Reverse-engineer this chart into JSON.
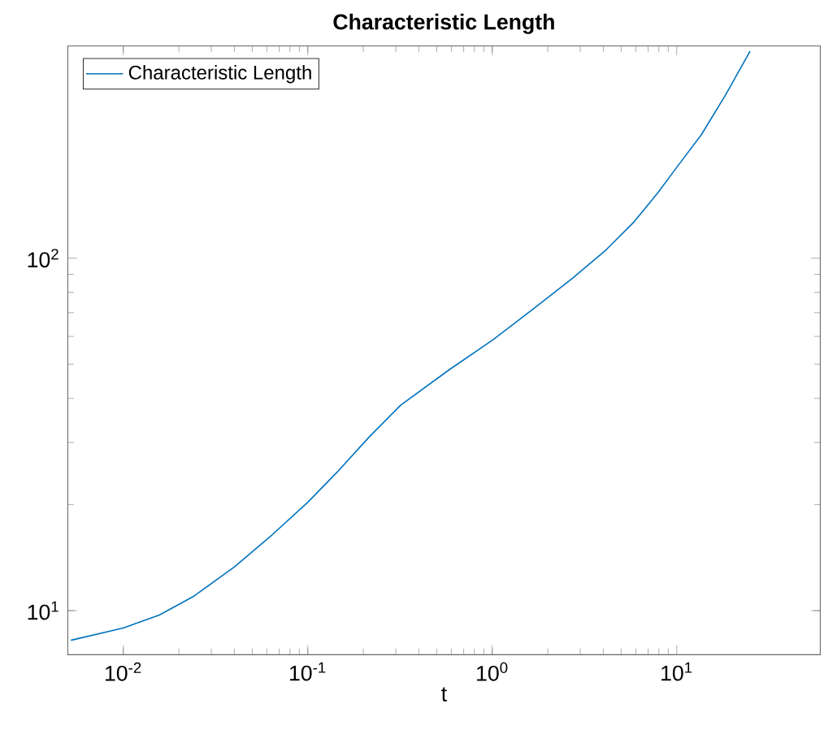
{
  "chart_data": {
    "type": "line",
    "title": "Characteristic Length",
    "xlabel": "t",
    "log": "xy",
    "xlim": [
      0.005,
      60
    ],
    "ylim": [
      7.5,
      400
    ],
    "xticks": [
      {
        "value": 0.01,
        "label": "10$^{-2}$"
      },
      {
        "value": 0.1,
        "label": "10$^{-1}$"
      },
      {
        "value": 1,
        "label": "10$^{0}$"
      },
      {
        "value": 10,
        "label": "10$^{1}$"
      }
    ],
    "yticks": [
      {
        "value": 10,
        "label": "10$^{1}$"
      },
      {
        "value": 100,
        "label": "10$^{2}$"
      }
    ],
    "legend": "top left",
    "grid": false,
    "marker": "none",
    "line_style": "solid",
    "x": [
      0.0052,
      0.01,
      0.0157,
      0.0242,
      0.04,
      0.064,
      0.1,
      0.143,
      0.214,
      0.319,
      0.583,
      1,
      1.7,
      2.72,
      4.07,
      5.89,
      7.96,
      10,
      13.6,
      18.5,
      25
    ],
    "series": [
      {
        "name": "Characteristic Length",
        "color": "#0072bd",
        "values": [
          8.24,
          8.93,
          9.72,
          11.0,
          13.3,
          16.4,
          20.3,
          24.6,
          31.0,
          38.3,
          48.2,
          58.5,
          72.3,
          87.7,
          104.7,
          127,
          154,
          181,
          224,
          292,
          387
        ]
      }
    ]
  }
}
